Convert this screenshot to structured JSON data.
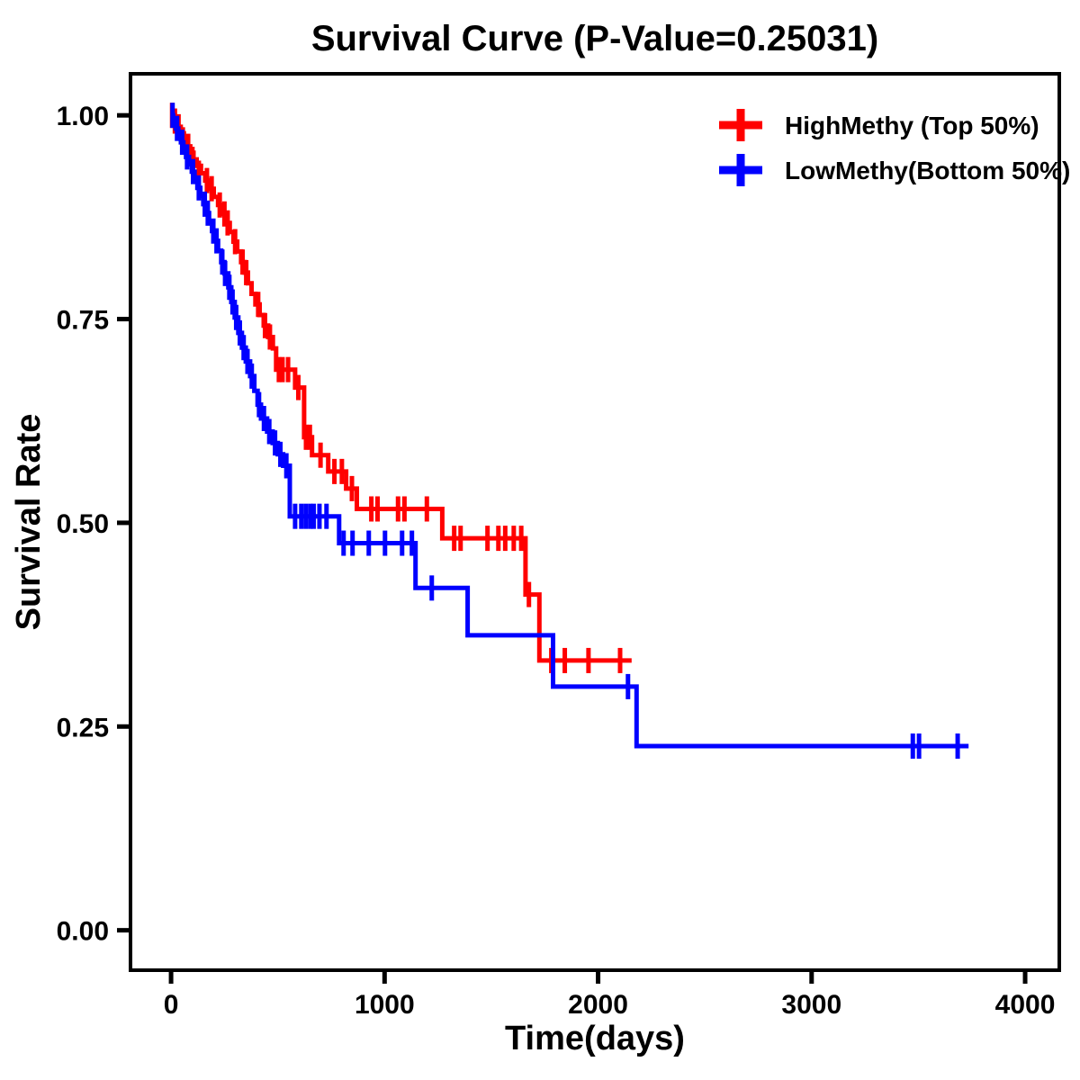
{
  "chart_data": {
    "type": "line",
    "subtype": "kaplan-meier-step-survival",
    "title": "Survival Curve (P-Value=0.25031)",
    "p_value": "0.25031",
    "xlabel": "Time(days)",
    "ylabel": "Survival Rate",
    "grid": false,
    "legend_position": "top-right",
    "xlim": [
      -190,
      4160
    ],
    "ylim": [
      -0.049,
      1.051
    ],
    "xticks": [
      0,
      1000,
      2000,
      3000,
      4000
    ],
    "xtick_labels": [
      "0",
      "1000",
      "2000",
      "3000",
      "4000"
    ],
    "yticks": [
      0,
      0.25,
      0.5,
      0.75,
      1.0
    ],
    "ytick_labels": [
      "0.00",
      "0.25",
      "0.50",
      "0.75",
      "1.00"
    ],
    "series": [
      {
        "name": "HighMethy (Top 50%)",
        "color": "#ff0000",
        "end_time": 2157,
        "steps": [
          [
            0,
            1.0
          ],
          [
            15,
            0.993
          ],
          [
            30,
            0.986
          ],
          [
            45,
            0.978
          ],
          [
            60,
            0.97
          ],
          [
            75,
            0.962
          ],
          [
            90,
            0.954
          ],
          [
            105,
            0.946
          ],
          [
            120,
            0.938
          ],
          [
            140,
            0.929
          ],
          [
            160,
            0.92
          ],
          [
            180,
            0.91
          ],
          [
            200,
            0.9
          ],
          [
            220,
            0.89
          ],
          [
            240,
            0.879
          ],
          [
            258,
            0.868
          ],
          [
            275,
            0.857
          ],
          [
            292,
            0.845
          ],
          [
            310,
            0.833
          ],
          [
            328,
            0.82
          ],
          [
            345,
            0.807
          ],
          [
            360,
            0.794
          ],
          [
            377,
            0.781
          ],
          [
            395,
            0.768
          ],
          [
            415,
            0.755
          ],
          [
            434,
            0.742
          ],
          [
            455,
            0.728
          ],
          [
            477,
            0.714
          ],
          [
            492,
            0.688
          ],
          [
            581,
            0.666
          ],
          [
            623,
            0.605
          ],
          [
            660,
            0.583
          ],
          [
            736,
            0.563
          ],
          [
            820,
            0.542
          ],
          [
            870,
            0.517
          ],
          [
            1270,
            0.481
          ],
          [
            1660,
            0.412
          ],
          [
            1725,
            0.331
          ]
        ],
        "censors": [
          [
            5,
            1.0
          ],
          [
            18,
            0.993
          ],
          [
            35,
            0.986
          ],
          [
            55,
            0.97
          ],
          [
            80,
            0.962
          ],
          [
            100,
            0.946
          ],
          [
            130,
            0.929
          ],
          [
            168,
            0.92
          ],
          [
            190,
            0.91
          ],
          [
            228,
            0.89
          ],
          [
            250,
            0.879
          ],
          [
            265,
            0.868
          ],
          [
            300,
            0.845
          ],
          [
            335,
            0.82
          ],
          [
            352,
            0.807
          ],
          [
            408,
            0.768
          ],
          [
            440,
            0.742
          ],
          [
            463,
            0.728
          ],
          [
            505,
            0.688
          ],
          [
            522,
            0.688
          ],
          [
            548,
            0.688
          ],
          [
            596,
            0.666
          ],
          [
            632,
            0.605
          ],
          [
            650,
            0.605
          ],
          [
            700,
            0.583
          ],
          [
            765,
            0.563
          ],
          [
            800,
            0.563
          ],
          [
            847,
            0.542
          ],
          [
            938,
            0.517
          ],
          [
            967,
            0.517
          ],
          [
            1063,
            0.517
          ],
          [
            1093,
            0.517
          ],
          [
            1198,
            0.517
          ],
          [
            1326,
            0.481
          ],
          [
            1356,
            0.481
          ],
          [
            1482,
            0.481
          ],
          [
            1533,
            0.481
          ],
          [
            1565,
            0.481
          ],
          [
            1605,
            0.481
          ],
          [
            1640,
            0.481
          ],
          [
            1676,
            0.412
          ],
          [
            1781,
            0.331
          ],
          [
            1844,
            0.331
          ],
          [
            1955,
            0.331
          ],
          [
            2103,
            0.331
          ]
        ]
      },
      {
        "name": "LowMethy(Bottom 50%)",
        "color": "#0000ff",
        "end_time": 3735,
        "steps": [
          [
            0,
            1.0
          ],
          [
            10,
            0.992
          ],
          [
            22,
            0.984
          ],
          [
            34,
            0.976
          ],
          [
            46,
            0.967
          ],
          [
            58,
            0.958
          ],
          [
            70,
            0.949
          ],
          [
            84,
            0.94
          ],
          [
            97,
            0.931
          ],
          [
            110,
            0.921
          ],
          [
            123,
            0.911
          ],
          [
            137,
            0.901
          ],
          [
            151,
            0.891
          ],
          [
            165,
            0.88
          ],
          [
            178,
            0.869
          ],
          [
            192,
            0.858
          ],
          [
            206,
            0.846
          ],
          [
            220,
            0.834
          ],
          [
            235,
            0.82
          ],
          [
            250,
            0.806
          ],
          [
            268,
            0.789
          ],
          [
            282,
            0.771
          ],
          [
            298,
            0.752
          ],
          [
            315,
            0.733
          ],
          [
            332,
            0.715
          ],
          [
            350,
            0.698
          ],
          [
            370,
            0.68
          ],
          [
            390,
            0.662
          ],
          [
            405,
            0.645
          ],
          [
            421,
            0.628
          ],
          [
            450,
            0.612
          ],
          [
            476,
            0.598
          ],
          [
            500,
            0.584
          ],
          [
            525,
            0.57
          ],
          [
            556,
            0.508
          ],
          [
            787,
            0.475
          ],
          [
            1145,
            0.42
          ],
          [
            1389,
            0.362
          ],
          [
            1789,
            0.299
          ],
          [
            2180,
            0.226
          ]
        ],
        "censors": [
          [
            7,
            1.0
          ],
          [
            28,
            0.984
          ],
          [
            52,
            0.967
          ],
          [
            75,
            0.949
          ],
          [
            103,
            0.931
          ],
          [
            130,
            0.911
          ],
          [
            158,
            0.891
          ],
          [
            172,
            0.88
          ],
          [
            198,
            0.858
          ],
          [
            213,
            0.846
          ],
          [
            240,
            0.82
          ],
          [
            253,
            0.806
          ],
          [
            273,
            0.789
          ],
          [
            288,
            0.771
          ],
          [
            305,
            0.752
          ],
          [
            322,
            0.733
          ],
          [
            340,
            0.715
          ],
          [
            358,
            0.698
          ],
          [
            378,
            0.68
          ],
          [
            412,
            0.645
          ],
          [
            435,
            0.628
          ],
          [
            460,
            0.612
          ],
          [
            487,
            0.598
          ],
          [
            512,
            0.584
          ],
          [
            540,
            0.57
          ],
          [
            581,
            0.508
          ],
          [
            610,
            0.508
          ],
          [
            631,
            0.508
          ],
          [
            652,
            0.508
          ],
          [
            668,
            0.508
          ],
          [
            695,
            0.508
          ],
          [
            728,
            0.508
          ],
          [
            808,
            0.475
          ],
          [
            850,
            0.475
          ],
          [
            926,
            0.475
          ],
          [
            1002,
            0.475
          ],
          [
            1082,
            0.475
          ],
          [
            1128,
            0.475
          ],
          [
            1221,
            0.42
          ],
          [
            2140,
            0.299
          ],
          [
            3474,
            0.226
          ],
          [
            3503,
            0.226
          ],
          [
            3684,
            0.226
          ]
        ]
      }
    ]
  }
}
